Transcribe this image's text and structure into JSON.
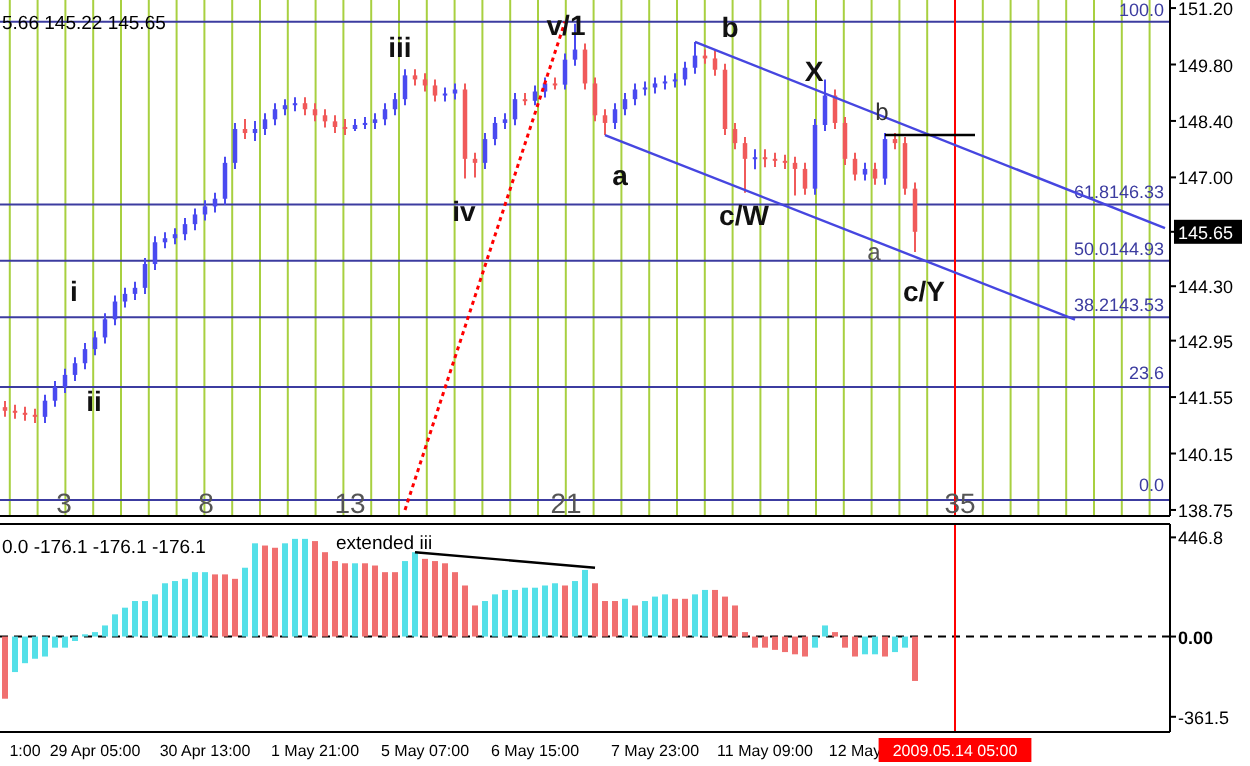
{
  "chart_data": [
    {
      "type": "candlestick",
      "annotations": [
        "5.66 145.22 145.65",
        "i",
        "ii",
        "iii",
        "iv",
        "v/1",
        "a",
        "b",
        "c/W",
        "X",
        "b",
        "a",
        "c/Y",
        "3",
        "8",
        "13",
        "21",
        "35",
        "100.0",
        "23.6",
        "0.0"
      ],
      "categories": [
        null,
        null,
        "1:00",
        null,
        null,
        null,
        null,
        null,
        null,
        "29 Apr 05:00",
        null,
        null,
        null,
        null,
        null,
        null,
        null,
        null,
        null,
        null,
        "30 Apr 13:00",
        null,
        null,
        null,
        null,
        null,
        null,
        null,
        null,
        null,
        null,
        "1 May 21:00",
        null,
        null,
        null,
        null,
        null,
        null,
        null,
        null,
        null,
        null,
        "5 May 07:00",
        null,
        null,
        null,
        null,
        null,
        null,
        null,
        null,
        null,
        null,
        "6 May 15:00",
        null,
        null,
        null,
        null,
        null,
        null,
        null,
        null,
        null,
        null,
        null,
        "7 May 23:00",
        null,
        null,
        null,
        null,
        null,
        null,
        null,
        null,
        null,
        null,
        "11 May 09:00",
        null,
        null,
        null,
        null,
        null,
        null,
        null,
        null,
        "12 May",
        null,
        null,
        null,
        null,
        null,
        null,
        null,
        null,
        null,
        "2009.05.14 05:00",
        null,
        null,
        null,
        null,
        null,
        null,
        null,
        null,
        null,
        null,
        null,
        null,
        null,
        null,
        null,
        null,
        null,
        null,
        null,
        null,
        null
      ],
      "tick_labels": "y",
      "ohlc": [
        [
          141.3,
          141.45,
          141.06,
          141.21
        ],
        [
          141.21,
          141.36,
          141.01,
          141.16
        ],
        [
          141.16,
          141.31,
          140.96,
          141.11
        ],
        [
          141.11,
          141.26,
          140.91,
          141.06
        ],
        [
          141.06,
          141.61,
          140.91,
          141.46
        ],
        [
          141.46,
          141.95,
          141.31,
          141.8
        ],
        [
          141.8,
          142.25,
          141.65,
          142.1
        ],
        [
          142.1,
          142.54,
          141.95,
          142.39
        ],
        [
          142.39,
          142.89,
          142.24,
          142.74
        ],
        [
          142.74,
          143.18,
          142.59,
          143.03
        ],
        [
          143.03,
          143.63,
          142.88,
          143.48
        ],
        [
          143.48,
          144.07,
          143.33,
          143.92
        ],
        [
          143.92,
          144.26,
          143.77,
          144.11
        ],
        [
          144.11,
          144.41,
          143.96,
          144.26
        ],
        [
          144.26,
          145.0,
          144.11,
          144.85
        ],
        [
          144.85,
          145.54,
          144.7,
          145.39
        ],
        [
          145.39,
          145.64,
          145.24,
          145.49
        ],
        [
          145.49,
          145.74,
          145.34,
          145.59
        ],
        [
          145.59,
          145.99,
          145.44,
          145.84
        ],
        [
          145.84,
          146.23,
          145.69,
          146.08
        ],
        [
          146.08,
          146.43,
          145.93,
          146.28
        ],
        [
          146.28,
          146.62,
          146.13,
          146.47
        ],
        [
          146.47,
          147.51,
          146.32,
          147.36
        ],
        [
          147.36,
          148.35,
          147.21,
          148.2
        ],
        [
          148.2,
          148.45,
          147.95,
          148.1
        ],
        [
          148.1,
          148.4,
          147.9,
          148.2
        ],
        [
          148.2,
          148.59,
          148.05,
          148.44
        ],
        [
          148.44,
          148.84,
          148.29,
          148.69
        ],
        [
          148.69,
          148.94,
          148.54,
          148.79
        ],
        [
          148.79,
          148.99,
          148.64,
          148.84
        ],
        [
          148.84,
          148.99,
          148.54,
          148.69
        ],
        [
          148.69,
          148.84,
          148.39,
          148.54
        ],
        [
          148.54,
          148.69,
          148.24,
          148.39
        ],
        [
          148.39,
          148.54,
          148.1,
          148.25
        ],
        [
          148.25,
          148.45,
          148.05,
          148.2
        ],
        [
          148.2,
          148.45,
          148.15,
          148.3
        ],
        [
          148.3,
          148.5,
          148.2,
          148.35
        ],
        [
          148.35,
          148.59,
          148.2,
          148.44
        ],
        [
          148.44,
          148.84,
          148.29,
          148.69
        ],
        [
          148.69,
          149.09,
          148.54,
          148.94
        ],
        [
          148.94,
          149.68,
          148.79,
          149.53
        ],
        [
          149.53,
          149.68,
          149.28,
          149.43
        ],
        [
          149.43,
          149.58,
          149.13,
          149.28
        ],
        [
          149.28,
          149.43,
          148.88,
          149.03
        ],
        [
          149.03,
          149.23,
          148.88,
          149.08
        ],
        [
          149.08,
          149.33,
          148.93,
          149.18
        ],
        [
          149.18,
          149.33,
          146.97,
          147.46
        ],
        [
          147.46,
          147.61,
          147.0,
          147.36
        ],
        [
          147.36,
          148.1,
          147.21,
          147.95
        ],
        [
          147.95,
          148.5,
          147.8,
          148.35
        ],
        [
          148.35,
          148.59,
          148.2,
          148.44
        ],
        [
          148.44,
          149.09,
          148.29,
          148.94
        ],
        [
          148.94,
          149.09,
          148.79,
          148.9
        ],
        [
          148.9,
          149.28,
          148.79,
          149.13
        ],
        [
          149.13,
          149.48,
          148.98,
          149.33
        ],
        [
          149.33,
          149.48,
          149.18,
          149.3
        ],
        [
          149.3,
          150.07,
          149.18,
          149.92
        ],
        [
          149.92,
          150.81,
          149.77,
          150.17
        ],
        [
          150.17,
          150.32,
          149.18,
          149.33
        ],
        [
          149.33,
          149.48,
          148.39,
          148.54
        ],
        [
          148.54,
          148.69,
          148.05,
          148.35
        ],
        [
          148.35,
          148.84,
          148.2,
          148.69
        ],
        [
          148.69,
          149.09,
          148.54,
          148.94
        ],
        [
          148.94,
          149.33,
          148.79,
          149.18
        ],
        [
          149.18,
          149.38,
          149.03,
          149.23
        ],
        [
          149.23,
          149.48,
          149.08,
          149.33
        ],
        [
          149.33,
          149.53,
          149.18,
          149.38
        ],
        [
          149.38,
          149.58,
          149.23,
          149.43
        ],
        [
          149.43,
          149.87,
          149.28,
          149.72
        ],
        [
          149.72,
          150.36,
          149.57,
          150.02
        ],
        [
          150.02,
          150.17,
          149.82,
          149.95
        ],
        [
          149.95,
          150.17,
          149.52,
          149.67
        ],
        [
          149.67,
          149.82,
          148.05,
          148.2
        ],
        [
          148.2,
          148.35,
          147.7,
          147.85
        ],
        [
          147.85,
          148.0,
          146.62,
          147.46
        ],
        [
          147.46,
          147.7,
          147.2,
          147.5
        ],
        [
          147.5,
          147.7,
          147.25,
          147.46
        ],
        [
          147.46,
          147.61,
          147.26,
          147.41
        ],
        [
          147.41,
          147.56,
          147.21,
          147.36
        ],
        [
          147.36,
          147.51,
          146.55,
          147.21
        ],
        [
          147.21,
          147.36,
          146.57,
          146.72
        ],
        [
          146.72,
          148.45,
          146.57,
          148.3
        ],
        [
          148.3,
          149.43,
          148.15,
          149.03
        ],
        [
          149.03,
          149.18,
          148.2,
          148.35
        ],
        [
          148.35,
          148.5,
          147.31,
          147.46
        ],
        [
          147.46,
          147.61,
          146.92,
          147.07
        ],
        [
          147.07,
          147.36,
          146.92,
          147.21
        ],
        [
          147.21,
          147.36,
          146.82,
          146.97
        ],
        [
          146.97,
          148.1,
          146.82,
          147.95
        ],
        [
          147.95,
          148.1,
          147.7,
          147.85
        ],
        [
          147.85,
          148.0,
          146.57,
          146.72
        ],
        [
          146.72,
          146.87,
          145.15,
          145.65
        ],
        null,
        null,
        null,
        null,
        null,
        null,
        null,
        null,
        null,
        null,
        null,
        null,
        null,
        null,
        null,
        null,
        null,
        null,
        null,
        null,
        null,
        null,
        null,
        null,
        null
      ],
      "colors": [
        "#f05a5a",
        "#f05a5a",
        "#f05a5a",
        "#f05a5a",
        "#4a4af0",
        "#4a4af0",
        "#4a4af0",
        "#4a4af0",
        "#4a4af0",
        "#4a4af0",
        "#4a4af0",
        "#4a4af0",
        "#4a4af0",
        "#4a4af0",
        "#4a4af0",
        "#4a4af0",
        "#4a4af0",
        "#4a4af0",
        "#4a4af0",
        "#4a4af0",
        "#4a4af0",
        "#4a4af0",
        "#4a4af0",
        "#4a4af0",
        "#f05a5a",
        "#4a4af0",
        "#4a4af0",
        "#4a4af0",
        "#4a4af0",
        "#4a4af0",
        "#f05a5a",
        "#f05a5a",
        "#f05a5a",
        "#f05a5a",
        "#f05a5a",
        "#4a4af0",
        "#4a4af0",
        "#4a4af0",
        "#4a4af0",
        "#4a4af0",
        "#4a4af0",
        "#f05a5a",
        "#f05a5a",
        "#f05a5a",
        "#4a4af0",
        "#4a4af0",
        "#f05a5a",
        "#f05a5a",
        "#4a4af0",
        "#4a4af0",
        "#4a4af0",
        "#4a4af0",
        "#f05a5a",
        "#4a4af0",
        "#4a4af0",
        "#f05a5a",
        "#4a4af0",
        "#4a4af0",
        "#f05a5a",
        "#f05a5a",
        "#f05a5a",
        "#4a4af0",
        "#4a4af0",
        "#4a4af0",
        "#4a4af0",
        "#4a4af0",
        "#4a4af0",
        "#4a4af0",
        "#4a4af0",
        "#4a4af0",
        "#f05a5a",
        "#f05a5a",
        "#f05a5a",
        "#f05a5a",
        "#f05a5a",
        "#4a4af0",
        "#f05a5a",
        "#f05a5a",
        "#f05a5a",
        "#f05a5a",
        "#f05a5a",
        "#4a4af0",
        "#4a4af0",
        "#f05a5a",
        "#f05a5a",
        "#f05a5a",
        "#4a4af0",
        "#f05a5a",
        "#4a4af0",
        "#f05a5a",
        "#f05a5a",
        "#f05a5a",
        null,
        null,
        null,
        null,
        null,
        null,
        null,
        null,
        null,
        null,
        null,
        null,
        null,
        null,
        null,
        null,
        null,
        null,
        null,
        null,
        null,
        null,
        null,
        null,
        null
      ],
      "series": [
        {
          "type": "line",
          "color": "#ff0000",
          "line_style": "dotted",
          "values": [
            null,
            null,
            null,
            null,
            null,
            null,
            null,
            null,
            null,
            null,
            null,
            null,
            null,
            null,
            null,
            null,
            null,
            null,
            null,
            null,
            null,
            null,
            null,
            null,
            null,
            null,
            null,
            null,
            null,
            null,
            null,
            null,
            null,
            null,
            null,
            null,
            null,
            null,
            null,
            null,
            138.75,
            null,
            null,
            null,
            null,
            null,
            null,
            null,
            null,
            null,
            null,
            null,
            null,
            null,
            null,
            null,
            150.86,
            null,
            null,
            null,
            null,
            null,
            null,
            null,
            null,
            null,
            null,
            null,
            null,
            null,
            null,
            null,
            null,
            null,
            null,
            null,
            null,
            null,
            null,
            null,
            null,
            null,
            null,
            null,
            null,
            null,
            null,
            null,
            null,
            null,
            null,
            null,
            null,
            null,
            null,
            null,
            null,
            null,
            null,
            null,
            null,
            null,
            null,
            null,
            null,
            null,
            null,
            null,
            null,
            null,
            null,
            null,
            null,
            null,
            null,
            null,
            null
          ]
        },
        {
          "type": "line",
          "color": "#4646e0",
          "line_style": "solid",
          "values": [
            null,
            null,
            null,
            null,
            null,
            null,
            null,
            null,
            null,
            null,
            null,
            null,
            null,
            null,
            null,
            null,
            null,
            null,
            null,
            null,
            null,
            null,
            null,
            null,
            null,
            null,
            null,
            null,
            null,
            null,
            null,
            null,
            null,
            null,
            null,
            null,
            null,
            null,
            null,
            null,
            null,
            null,
            null,
            null,
            null,
            null,
            null,
            null,
            null,
            null,
            null,
            null,
            null,
            null,
            null,
            null,
            null,
            null,
            null,
            null,
            148.05,
            null,
            null,
            null,
            null,
            null,
            null,
            null,
            null,
            null,
            null,
            null,
            null,
            null,
            null,
            null,
            null,
            null,
            null,
            null,
            null,
            null,
            null,
            null,
            null,
            null,
            null,
            null,
            null,
            null,
            null,
            null,
            null,
            null,
            null,
            null,
            null,
            null,
            null,
            null,
            null,
            null,
            null,
            null,
            null,
            null,
            null,
            143.47,
            null,
            null,
            null,
            null,
            null,
            null,
            null,
            null,
            null
          ]
        },
        {
          "type": "line",
          "color": "#4646e0",
          "line_style": "solid",
          "values": [
            null,
            null,
            null,
            null,
            null,
            null,
            null,
            null,
            null,
            null,
            null,
            null,
            null,
            null,
            null,
            null,
            null,
            null,
            null,
            null,
            null,
            null,
            null,
            null,
            null,
            null,
            null,
            null,
            null,
            null,
            null,
            null,
            null,
            null,
            null,
            null,
            null,
            null,
            null,
            null,
            null,
            null,
            null,
            null,
            null,
            null,
            null,
            null,
            null,
            null,
            null,
            null,
            null,
            null,
            null,
            null,
            null,
            null,
            null,
            null,
            null,
            null,
            null,
            null,
            null,
            null,
            null,
            null,
            null,
            150.36,
            null,
            null,
            null,
            null,
            null,
            null,
            null,
            null,
            null,
            null,
            null,
            null,
            null,
            null,
            null,
            null,
            null,
            null,
            null,
            null,
            null,
            null,
            null,
            null,
            null,
            null,
            null,
            null,
            null,
            null,
            null,
            null,
            null,
            null,
            null,
            null,
            null,
            null,
            null,
            null,
            null,
            null,
            null,
            null,
            null,
            null,
            145.74
          ]
        },
        {
          "type": "line",
          "color": "#000000",
          "line_style": "solid",
          "values": [
            null,
            null,
            null,
            null,
            null,
            null,
            null,
            null,
            null,
            null,
            null,
            null,
            null,
            null,
            null,
            null,
            null,
            null,
            null,
            null,
            null,
            null,
            null,
            null,
            null,
            null,
            null,
            null,
            null,
            null,
            null,
            null,
            null,
            null,
            null,
            null,
            null,
            null,
            null,
            null,
            null,
            null,
            null,
            null,
            null,
            null,
            null,
            null,
            null,
            null,
            null,
            null,
            null,
            null,
            null,
            null,
            null,
            null,
            null,
            null,
            null,
            null,
            null,
            null,
            null,
            null,
            null,
            null,
            null,
            null,
            null,
            null,
            null,
            null,
            null,
            null,
            null,
            null,
            null,
            null,
            null,
            null,
            null,
            null,
            null,
            null,
            null,
            null,
            148.05,
            null,
            null,
            null,
            null,
            null,
            null,
            null,
            null,
            148.05,
            null,
            null,
            null,
            null,
            null,
            null,
            null,
            null,
            null,
            null,
            null,
            null,
            null,
            null,
            null,
            null,
            null,
            null,
            null
          ]
        }
      ],
      "ylim": [
        138.6,
        151.4
      ],
      "yticks": [
        {
          "value": 151.2,
          "label": "151.20"
        },
        {
          "value": 149.8,
          "label": "149.80"
        },
        {
          "value": 148.4,
          "label": "148.40"
        },
        {
          "value": 147,
          "label": "147.00"
        },
        {
          "value": 145.65,
          "label": "145.65"
        },
        {
          "value": 144.3,
          "label": "144.30"
        },
        {
          "value": 142.95,
          "label": "142.95"
        },
        {
          "value": 141.55,
          "label": "141.55"
        },
        {
          "value": 140.15,
          "label": "140.15"
        },
        {
          "value": 138.75,
          "label": "138.75"
        }
      ],
      "grid": "x",
      "ref_lines": [
        {
          "axis": "y",
          "value": 150.86,
          "color": "#3c3ca0"
        },
        {
          "axis": "y",
          "value": 146.33,
          "label": "61.8146.33",
          "color": "#3c3ca0"
        },
        {
          "axis": "y",
          "value": 144.93,
          "label": "50.0144.93",
          "color": "#3c3ca0"
        },
        {
          "axis": "y",
          "value": 143.53,
          "label": "38.2143.53",
          "color": "#3c3ca0"
        },
        {
          "axis": "y",
          "value": 141.8,
          "color": "#3c3ca0"
        },
        {
          "axis": "y",
          "value": 139.0,
          "color": "#3c3ca0"
        },
        {
          "axis": "x",
          "value": "2009.05.14 05:00",
          "color": "#ff0000"
        }
      ]
    },
    {
      "type": "bar",
      "annotations": [
        "0.0 -176.1 -176.1 -176.1",
        "extended iii"
      ],
      "categories": [
        null,
        null,
        "1:00",
        null,
        null,
        null,
        null,
        null,
        null,
        "29 Apr 05:00",
        null,
        null,
        null,
        null,
        null,
        null,
        null,
        null,
        null,
        null,
        "30 Apr 13:00",
        null,
        null,
        null,
        null,
        null,
        null,
        null,
        null,
        null,
        null,
        "1 May 21:00",
        null,
        null,
        null,
        null,
        null,
        null,
        null,
        null,
        null,
        null,
        "5 May 07:00",
        null,
        null,
        null,
        null,
        null,
        null,
        null,
        null,
        null,
        null,
        "6 May 15:00",
        null,
        null,
        null,
        null,
        null,
        null,
        null,
        null,
        null,
        null,
        null,
        "7 May 23:00",
        null,
        null,
        null,
        null,
        null,
        null,
        null,
        null,
        null,
        null,
        "11 May 09:00",
        null,
        null,
        null,
        null,
        null,
        null,
        null,
        null,
        "12 May",
        null,
        null,
        null,
        null,
        null,
        null,
        null,
        null,
        null,
        "2009.05.14 05:00",
        null,
        null,
        null,
        null,
        null,
        null,
        null,
        null,
        null,
        null,
        null,
        null,
        null,
        null,
        null,
        null,
        null,
        null,
        null,
        null,
        null
      ],
      "series": [
        {
          "type": "bar",
          "values": [
            -280,
            -160,
            -120,
            -100,
            -90,
            -50,
            -50,
            -20,
            10,
            20,
            50,
            100,
            130,
            160,
            160,
            190,
            240,
            250,
            260,
            290,
            290,
            280,
            280,
            260,
            310,
            420,
            410,
            400,
            420,
            440,
            440,
            430,
            380,
            340,
            330,
            330,
            330,
            320,
            290,
            290,
            340,
            380,
            350,
            340,
            330,
            290,
            230,
            140,
            160,
            190,
            210,
            210,
            220,
            220,
            230,
            240,
            230,
            250,
            300,
            240,
            160,
            160,
            170,
            140,
            160,
            180,
            190,
            170,
            170,
            190,
            210,
            210,
            180,
            140,
            20,
            -50,
            -50,
            -60,
            -70,
            -80,
            -90,
            -50,
            50,
            20,
            -50,
            -90,
            -80,
            -80,
            -90,
            -70,
            -50,
            -200,
            null,
            null,
            null,
            null,
            null,
            null,
            null,
            null,
            null,
            null,
            null,
            null,
            null,
            null,
            null,
            null,
            null,
            null,
            null,
            null,
            null,
            null,
            null,
            null,
            null
          ],
          "colors": [
            "#f07070",
            "#55e0e8",
            "#55e0e8",
            "#55e0e8",
            "#55e0e8",
            "#55e0e8",
            "#55e0e8",
            "#55e0e8",
            "#55e0e8",
            "#55e0e8",
            "#55e0e8",
            "#55e0e8",
            "#55e0e8",
            "#55e0e8",
            "#55e0e8",
            "#55e0e8",
            "#55e0e8",
            "#55e0e8",
            "#55e0e8",
            "#55e0e8",
            "#55e0e8",
            "#f07070",
            "#f07070",
            "#f07070",
            "#55e0e8",
            "#55e0e8",
            "#f07070",
            "#f07070",
            "#55e0e8",
            "#55e0e8",
            "#55e0e8",
            "#f07070",
            "#f07070",
            "#f07070",
            "#f07070",
            "#55e0e8",
            "#f07070",
            "#f07070",
            "#f07070",
            "#f07070",
            "#55e0e8",
            "#55e0e8",
            "#f07070",
            "#f07070",
            "#f07070",
            "#f07070",
            "#f07070",
            "#f07070",
            "#55e0e8",
            "#55e0e8",
            "#55e0e8",
            "#55e0e8",
            "#55e0e8",
            "#55e0e8",
            "#55e0e8",
            "#55e0e8",
            "#f07070",
            "#55e0e8",
            "#55e0e8",
            "#f07070",
            "#f07070",
            "#f07070",
            "#55e0e8",
            "#f07070",
            "#55e0e8",
            "#55e0e8",
            "#55e0e8",
            "#f07070",
            "#f07070",
            "#55e0e8",
            "#55e0e8",
            "#f07070",
            "#f07070",
            "#f07070",
            "#f07070",
            "#f07070",
            "#f07070",
            "#f07070",
            "#f07070",
            "#f07070",
            "#f07070",
            "#55e0e8",
            "#55e0e8",
            "#f07070",
            "#f07070",
            "#f07070",
            "#55e0e8",
            "#55e0e8",
            "#f07070",
            "#55e0e8",
            "#55e0e8",
            "#f07070",
            null,
            null,
            null,
            null,
            null,
            null,
            null,
            null,
            null,
            null,
            null,
            null,
            null,
            null,
            null,
            null,
            null,
            null,
            null,
            null,
            null,
            null,
            null,
            null,
            null
          ]
        },
        {
          "type": "line",
          "color": "#000000",
          "line_style": "solid",
          "values": [
            null,
            null,
            null,
            null,
            null,
            null,
            null,
            null,
            null,
            null,
            null,
            null,
            null,
            null,
            null,
            null,
            null,
            null,
            null,
            null,
            null,
            null,
            null,
            null,
            null,
            null,
            null,
            null,
            null,
            null,
            null,
            null,
            null,
            null,
            null,
            null,
            null,
            null,
            null,
            null,
            null,
            380,
            null,
            null,
            null,
            null,
            null,
            null,
            null,
            null,
            null,
            null,
            null,
            null,
            null,
            null,
            null,
            null,
            null,
            310,
            null,
            null,
            null,
            null,
            null,
            null,
            null,
            null,
            null,
            null,
            null,
            null,
            null,
            null,
            null,
            null,
            null,
            null,
            null,
            null,
            null,
            null,
            null,
            null,
            null,
            null,
            null,
            null,
            null,
            null,
            null,
            null,
            null,
            null,
            null,
            null,
            null,
            null,
            null,
            null,
            null,
            null,
            null,
            null,
            null,
            null,
            null,
            null,
            null,
            null,
            null,
            null,
            null,
            null,
            null,
            null,
            null
          ]
        }
      ],
      "ylim": [
        -430,
        507
      ],
      "yticks": [
        446.8,
        {
          "value": 0,
          "label": "0.00"
        },
        -361.5
      ],
      "ref_lines": [
        {
          "axis": "y",
          "value": 0,
          "color": "#000000",
          "line_style": "dashed"
        },
        {
          "axis": "x",
          "value": "2009.05.14 05:00",
          "color": "#ff0000"
        }
      ]
    }
  ]
}
